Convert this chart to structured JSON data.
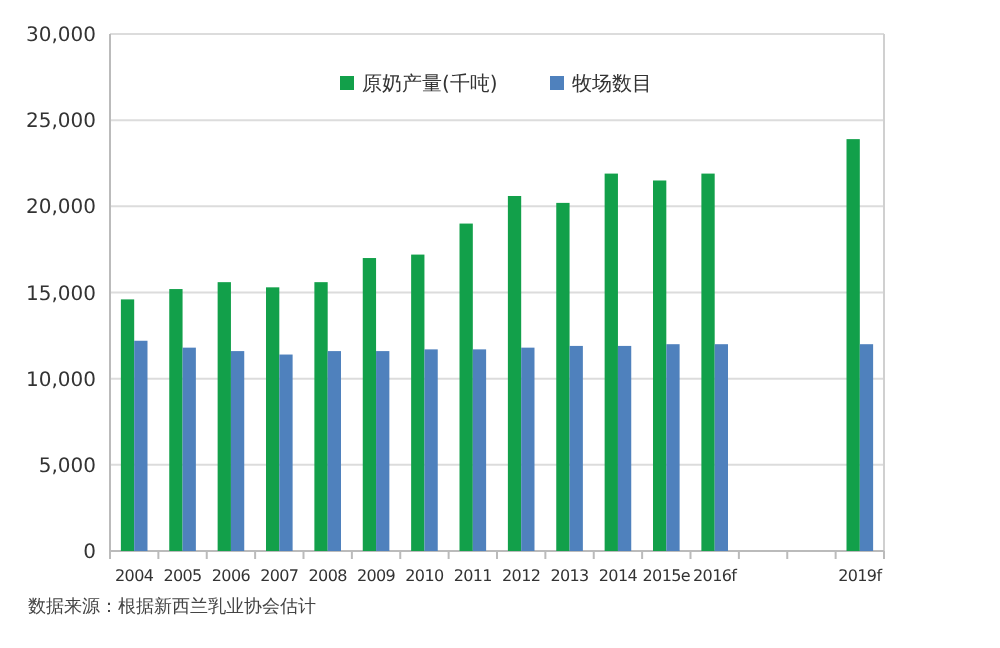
{
  "chart_data": {
    "type": "bar",
    "categories": [
      "2004",
      "2005",
      "2006",
      "2007",
      "2008",
      "2009",
      "2010",
      "2011",
      "2012",
      "2013",
      "2014",
      "2015e",
      "2016f",
      null,
      null,
      "2019f"
    ],
    "series": [
      {
        "name": "原奶产量(千吨)",
        "color": "#12a04a",
        "values": [
          14600,
          15200,
          15600,
          15300,
          15600,
          17000,
          17200,
          19000,
          20600,
          20200,
          21900,
          21500,
          21900,
          null,
          null,
          23900
        ]
      },
      {
        "name": "牧场数目",
        "color": "#4f81bd",
        "values": [
          12200,
          11800,
          11600,
          11400,
          11600,
          11600,
          11700,
          11700,
          11800,
          11900,
          11900,
          12000,
          12000,
          null,
          null,
          12000
        ]
      }
    ],
    "ylim": [
      0,
      30000
    ],
    "yticks": [
      {
        "value": 0,
        "label": "0"
      },
      {
        "value": 5000,
        "label": "5,000"
      },
      {
        "value": 10000,
        "label": "10,000"
      },
      {
        "value": 15000,
        "label": "15,000"
      },
      {
        "value": 20000,
        "label": "20,000"
      },
      {
        "value": 25000,
        "label": "25,000"
      },
      {
        "value": 30000,
        "label": "30,000"
      }
    ],
    "grid": "y",
    "legend": "top",
    "annotations": [
      "数据来源：根据新西兰乳业协会估计"
    ]
  }
}
